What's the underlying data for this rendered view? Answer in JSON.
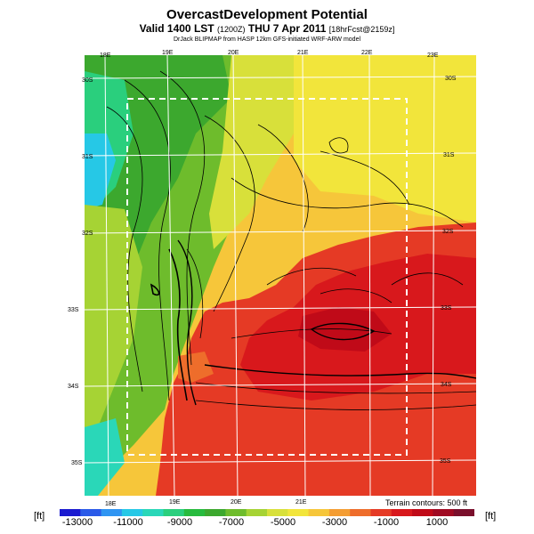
{
  "header": {
    "title": "OvercastDevelopment Potential",
    "valid_main": "Valid 1400 LST",
    "valid_code": "(1200Z)",
    "valid_date": "THU 7 Apr 2011",
    "valid_fcst": "[18hrFcst@2159z]",
    "credits": "DrJack BLIPMAP from HASP 12km GFS-initiated WRF-ARW model"
  },
  "top_lon_labels": [
    "18E",
    "19E",
    "20E",
    "21E",
    "22E",
    "23E"
  ],
  "bottom_lon_labels": [
    "18E",
    "19E",
    "20E",
    "21E"
  ],
  "left_lat_labels": [
    "30S",
    "31S",
    "32S",
    "33S",
    "34S",
    "35S"
  ],
  "right_lat_labels": [
    "30S",
    "31S",
    "32S",
    "33S",
    "34S",
    "35S"
  ],
  "legend": {
    "unit_left": "[ft]",
    "unit_right": "[ft]",
    "contour_note": "Terrain contours: 500 ft",
    "tick_labels": [
      "-13000",
      "-11000",
      "-9000",
      "-7000",
      "-5000",
      "-3000",
      "-1000",
      "1000"
    ],
    "colors": [
      "#1b1bd0",
      "#2a5ae8",
      "#2f95f2",
      "#26c8e6",
      "#2ad7b8",
      "#2acf7d",
      "#27bb3e",
      "#3ca82e",
      "#6ebc2c",
      "#a6d334",
      "#d8e03a",
      "#f2e53b",
      "#f6c63a",
      "#f49d33",
      "#ee6d2b",
      "#e53a25",
      "#d8181c",
      "#c00a18",
      "#a00a22",
      "#7a0f2c"
    ]
  }
}
